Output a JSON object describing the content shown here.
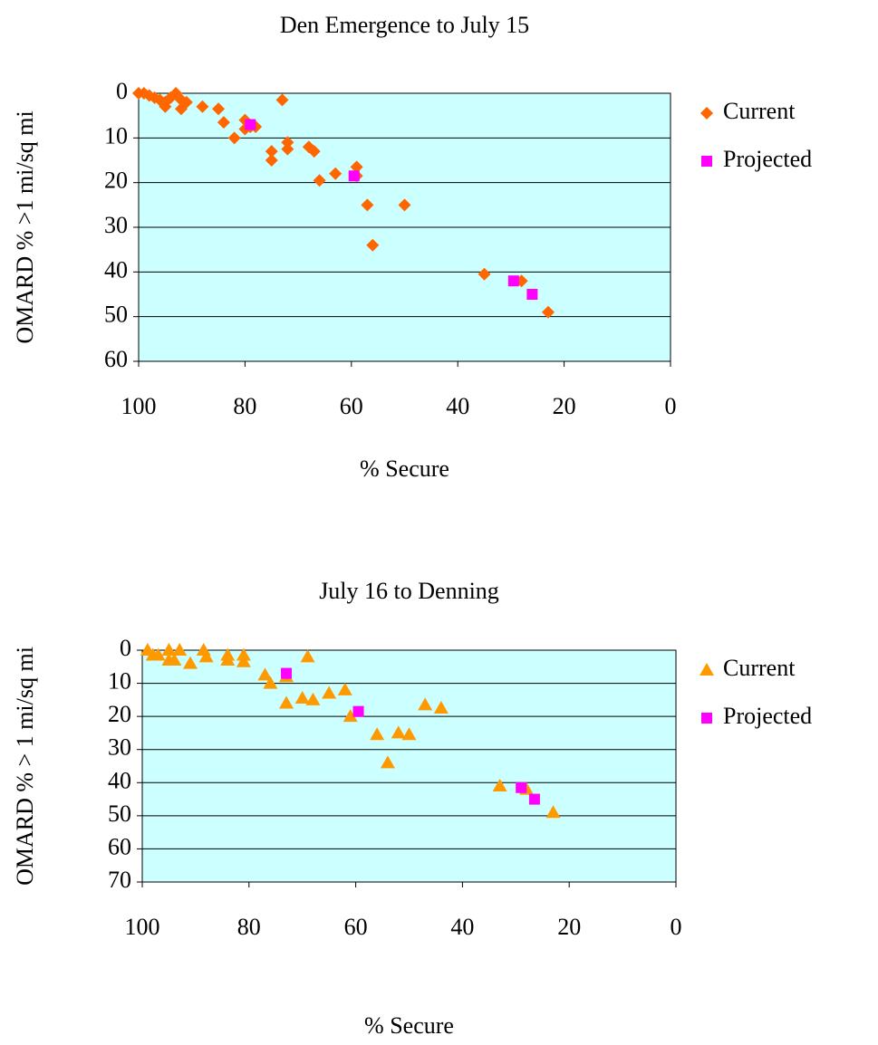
{
  "chart_data": [
    {
      "type": "scatter",
      "title": "Den Emergence to July 15",
      "x_label": "% Secure",
      "y_label": "OMARD % >1 mi/sq mi",
      "xlim": [
        100,
        0
      ],
      "xticks": [
        100,
        80,
        60,
        40,
        20,
        0
      ],
      "ylim": [
        0,
        60
      ],
      "yticks": [
        0,
        10,
        20,
        30,
        40,
        50,
        60
      ],
      "y_reversed": true,
      "grid": true,
      "plot_background": "#ccffff",
      "series": [
        {
          "name": "Current",
          "color": "#ff6600",
          "marker": "diamond",
          "x": [
            100,
            99,
            98,
            97,
            96,
            95,
            95,
            94,
            93,
            92,
            92,
            91,
            88,
            85,
            84,
            82,
            80,
            80,
            79,
            78,
            73,
            75,
            75,
            72,
            72,
            68,
            67,
            66,
            63,
            59,
            59,
            57,
            56,
            50,
            35,
            28,
            23
          ],
          "values": [
            0,
            0,
            0.5,
            1,
            1.5,
            2,
            3,
            1,
            0,
            1.5,
            3.5,
            2,
            3,
            3.5,
            6.5,
            10,
            6,
            8,
            7.5,
            7.5,
            1.5,
            13,
            15,
            11,
            12.5,
            12,
            13,
            19.5,
            18,
            16.5,
            18.5,
            25,
            34,
            25,
            40.5,
            42,
            49
          ]
        },
        {
          "name": "Projected",
          "color": "#ff00ff",
          "marker": "square",
          "x": [
            79,
            59.5,
            29.5,
            26
          ],
          "values": [
            7,
            18.5,
            42,
            45
          ]
        }
      ]
    },
    {
      "type": "scatter",
      "title": "July 16 to Denning",
      "x_label": "% Secure",
      "y_label": "OMARD % > 1 mi/sq mi",
      "xlim": [
        100,
        0
      ],
      "xticks": [
        100,
        80,
        60,
        40,
        20,
        0
      ],
      "ylim": [
        0,
        70
      ],
      "yticks": [
        0,
        10,
        20,
        30,
        40,
        50,
        60,
        70
      ],
      "y_reversed": true,
      "grid": true,
      "plot_background": "#ccffff",
      "series": [
        {
          "name": "Current",
          "color": "#ff9900",
          "marker": "triangle",
          "x": [
            99,
            98,
            97,
            95,
            95,
            94,
            93,
            91,
            88.5,
            88,
            84,
            84,
            81,
            81,
            77,
            76,
            73,
            73,
            70,
            68,
            69,
            65,
            62,
            61,
            56,
            54,
            52,
            50,
            47,
            44,
            33,
            28,
            23
          ],
          "values": [
            0,
            1.5,
            1.5,
            0,
            3,
            3,
            0,
            4,
            0,
            2,
            1.5,
            3,
            1.5,
            3.5,
            7.5,
            10,
            8,
            16,
            14.5,
            15,
            2,
            13,
            12,
            20,
            25.5,
            34,
            25,
            25.5,
            16.5,
            17.5,
            41,
            42,
            49
          ]
        },
        {
          "name": "Projected",
          "color": "#ff00ff",
          "marker": "square",
          "x": [
            73,
            59.5,
            29,
            26.5
          ],
          "values": [
            7,
            18.5,
            41.5,
            45
          ]
        }
      ]
    }
  ]
}
